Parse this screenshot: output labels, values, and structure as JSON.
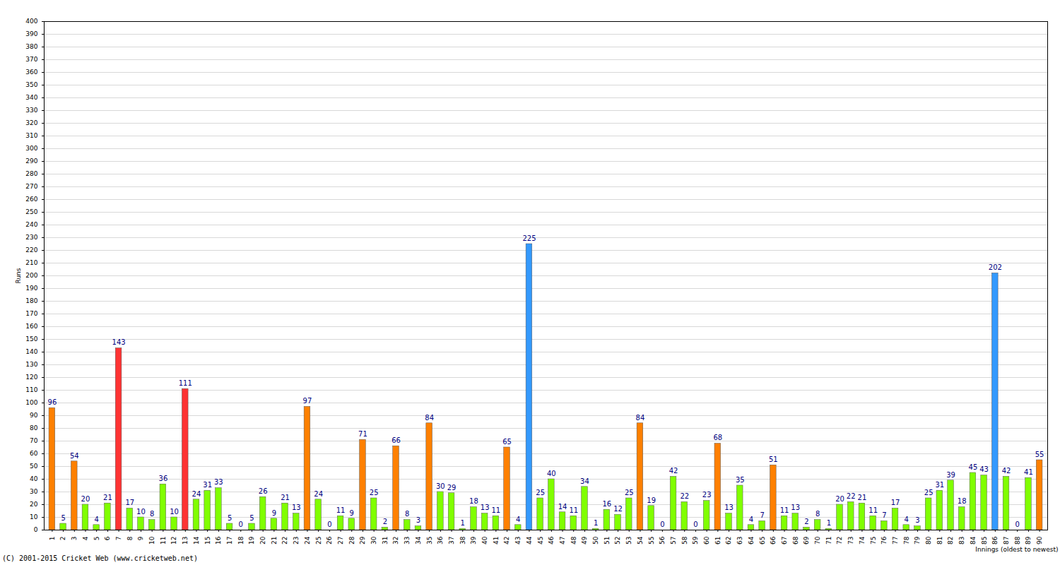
{
  "chart_data": {
    "type": "bar",
    "caption": "(C) 2001-2015 Cricket Web (www.cricketweb.net)",
    "xlabel": "Innings (oldest to newest)",
    "ylabel": "Runs",
    "categories": [
      "1",
      "2",
      "3",
      "4",
      "5",
      "6",
      "7",
      "8",
      "9",
      "10",
      "11",
      "12",
      "13",
      "14",
      "15",
      "16",
      "17",
      "18",
      "19",
      "20",
      "21",
      "22",
      "23",
      "24",
      "25",
      "26",
      "27",
      "28",
      "29",
      "30",
      "31",
      "32",
      "33",
      "34",
      "35",
      "36",
      "37",
      "38",
      "39",
      "40",
      "41",
      "42",
      "43",
      "44",
      "45",
      "46",
      "47",
      "48",
      "49",
      "50",
      "51",
      "52",
      "53",
      "54",
      "55",
      "56",
      "57",
      "58",
      "59",
      "60",
      "61",
      "62",
      "63",
      "64",
      "65",
      "66",
      "67",
      "68",
      "69",
      "70",
      "71",
      "72",
      "73",
      "74",
      "75",
      "76",
      "77",
      "78",
      "79",
      "80",
      "81",
      "82",
      "83",
      "84",
      "85",
      "86",
      "87",
      "88",
      "89",
      "90"
    ],
    "values": [
      96,
      5,
      54,
      20,
      4,
      21,
      143,
      17,
      10,
      8,
      36,
      10,
      111,
      24,
      31,
      33,
      5,
      0,
      5,
      26,
      9,
      21,
      13,
      97,
      24,
      0,
      11,
      9,
      71,
      25,
      2,
      66,
      8,
      3,
      84,
      30,
      29,
      1,
      18,
      13,
      11,
      65,
      4,
      225,
      25,
      40,
      14,
      11,
      34,
      1,
      16,
      12,
      25,
      84,
      19,
      0,
      42,
      22,
      0,
      23,
      68,
      13,
      35,
      4,
      7,
      51,
      11,
      13,
      2,
      8,
      1,
      20,
      22,
      21,
      11,
      7,
      17,
      4,
      3,
      25,
      31,
      39,
      18,
      45,
      43,
      202,
      42,
      0,
      41,
      55
    ],
    "colors": [
      "#ff8000",
      "#80ff00",
      "#ff8000",
      "#80ff00",
      "#80ff00",
      "#80ff00",
      "#ff3333",
      "#80ff00",
      "#80ff00",
      "#80ff00",
      "#80ff00",
      "#80ff00",
      "#ff3333",
      "#80ff00",
      "#80ff00",
      "#80ff00",
      "#80ff00",
      "#80ff00",
      "#80ff00",
      "#80ff00",
      "#80ff00",
      "#80ff00",
      "#80ff00",
      "#ff8000",
      "#80ff00",
      "#80ff00",
      "#80ff00",
      "#80ff00",
      "#ff8000",
      "#80ff00",
      "#80ff00",
      "#ff8000",
      "#80ff00",
      "#80ff00",
      "#ff8000",
      "#80ff00",
      "#80ff00",
      "#80ff00",
      "#80ff00",
      "#80ff00",
      "#80ff00",
      "#ff8000",
      "#80ff00",
      "#3399ff",
      "#80ff00",
      "#80ff00",
      "#80ff00",
      "#80ff00",
      "#80ff00",
      "#80ff00",
      "#80ff00",
      "#80ff00",
      "#80ff00",
      "#ff8000",
      "#80ff00",
      "#80ff00",
      "#80ff00",
      "#80ff00",
      "#80ff00",
      "#80ff00",
      "#ff8000",
      "#80ff00",
      "#80ff00",
      "#80ff00",
      "#80ff00",
      "#ff8000",
      "#80ff00",
      "#80ff00",
      "#80ff00",
      "#80ff00",
      "#80ff00",
      "#80ff00",
      "#80ff00",
      "#80ff00",
      "#80ff00",
      "#80ff00",
      "#80ff00",
      "#80ff00",
      "#80ff00",
      "#80ff00",
      "#80ff00",
      "#80ff00",
      "#80ff00",
      "#80ff00",
      "#80ff00",
      "#3399ff",
      "#80ff00",
      "#80ff00",
      "#80ff00",
      "#ff8000"
    ],
    "ylim": [
      0,
      400
    ],
    "yticks": [
      0,
      10,
      20,
      30,
      40,
      50,
      60,
      70,
      80,
      90,
      100,
      110,
      120,
      130,
      140,
      150,
      160,
      170,
      180,
      190,
      200,
      210,
      220,
      230,
      240,
      250,
      260,
      270,
      280,
      290,
      300,
      310,
      320,
      330,
      340,
      350,
      360,
      370,
      380,
      390,
      400
    ],
    "grid": true,
    "data_labels": true
  }
}
